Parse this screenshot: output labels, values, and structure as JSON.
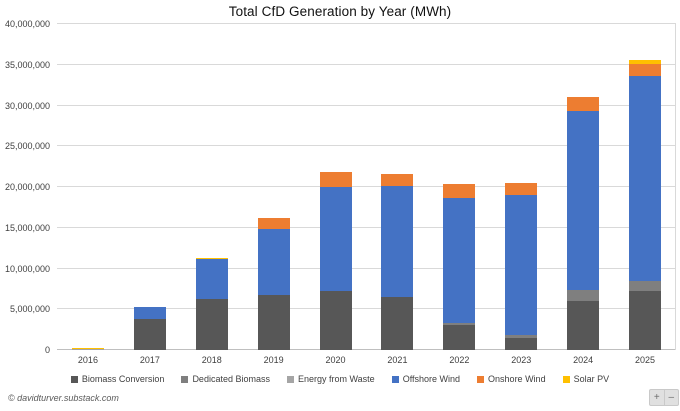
{
  "title": "Total CfD Generation by Year (MWh)",
  "footer": {
    "credit": "© davidturver.substack.com"
  },
  "zoom_controls": {
    "zoom_in": "+",
    "zoom_out": "–"
  },
  "chart_data": {
    "type": "bar",
    "stacked": true,
    "title": "Total CfD Generation by Year (MWh)",
    "xlabel": "",
    "ylabel": "",
    "ylim": [
      0,
      40000000
    ],
    "ytick_interval": 5000000,
    "grid": true,
    "legend_position": "bottom",
    "categories": [
      "2016",
      "2017",
      "2018",
      "2019",
      "2020",
      "2021",
      "2022",
      "2023",
      "2024",
      "2025"
    ],
    "series": [
      {
        "name": "Biomass Conversion",
        "color": "#575757",
        "values": [
          0,
          3800000,
          6300000,
          6750000,
          7250000,
          6550000,
          3100000,
          1500000,
          6000000,
          7250000
        ]
      },
      {
        "name": "Dedicated Biomass",
        "color": "#7f7f7f",
        "values": [
          100000,
          0,
          0,
          0,
          0,
          0,
          200000,
          350000,
          1350000,
          1250000
        ]
      },
      {
        "name": "Energy from Waste",
        "color": "#a5a5a5",
        "values": [
          50000,
          0,
          0,
          0,
          0,
          0,
          0,
          0,
          0,
          0
        ]
      },
      {
        "name": "Offshore Wind",
        "color": "#4472c4",
        "values": [
          0,
          1500000,
          4900000,
          8150000,
          12800000,
          13550000,
          15350000,
          17150000,
          21950000,
          25100000
        ]
      },
      {
        "name": "Onshore Wind",
        "color": "#ed7d31",
        "values": [
          0,
          0,
          0,
          1350000,
          1850000,
          1450000,
          1700000,
          1450000,
          1700000,
          1500000
        ]
      },
      {
        "name": "Solar PV",
        "color": "#ffc000",
        "values": [
          50000,
          0,
          80000,
          0,
          0,
          0,
          0,
          0,
          0,
          500000
        ]
      }
    ]
  }
}
